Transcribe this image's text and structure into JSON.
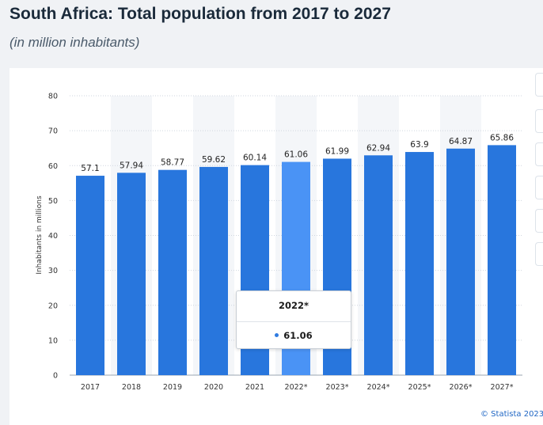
{
  "header": {
    "title": "South Africa: Total population from 2017 to 2027",
    "subtitle": "(in million inhabitants)"
  },
  "chart_data": {
    "type": "bar",
    "title": "South Africa: Total population from 2017 to 2027",
    "subtitle": "(in million inhabitants)",
    "xlabel": "",
    "ylabel": "Inhabitants in millions",
    "ylim": [
      0,
      80
    ],
    "yticks": [
      0,
      10,
      20,
      30,
      40,
      50,
      60,
      70,
      80
    ],
    "grid": true,
    "categories": [
      "2017",
      "2018",
      "2019",
      "2020",
      "2021",
      "2022*",
      "2023*",
      "2024*",
      "2025*",
      "2026*",
      "2027*"
    ],
    "values": [
      57.1,
      57.94,
      58.77,
      59.62,
      60.14,
      61.06,
      61.99,
      62.94,
      63.9,
      64.87,
      65.86
    ],
    "value_labels": [
      "57.1",
      "57.94",
      "58.77",
      "59.62",
      "60.14",
      "61.06",
      "61.99",
      "62.94",
      "63.9",
      "64.87",
      "65.86"
    ],
    "highlighted_index": 5,
    "colors": {
      "bar": "#2876dd",
      "highlight": "#4a93f5",
      "grid": "#cfd6df",
      "band": "#f4f6f9"
    }
  },
  "tooltip": {
    "category": "2022*",
    "value": "61.06"
  },
  "footer": {
    "credit": "© Statista 2023"
  }
}
